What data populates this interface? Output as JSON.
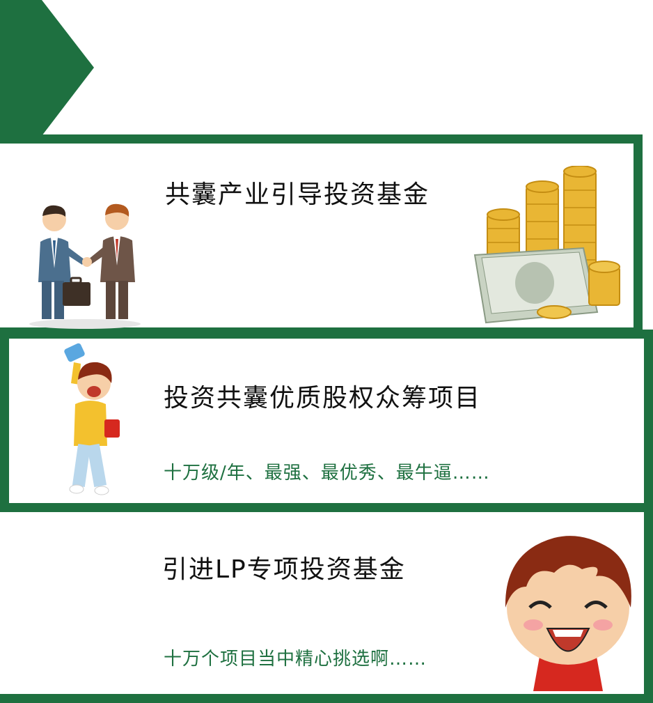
{
  "colors": {
    "accent": "#1e7040"
  },
  "sections": [
    {
      "title": "共囊产业引导投资基金",
      "subtitle": "",
      "icon": "handshake-businessmen-icon",
      "icon2": "money-coins-icon"
    },
    {
      "title": "投资共囊优质股权众筹项目",
      "subtitle": "十万级/年、最强、最优秀、最牛逼……",
      "icon": "cheering-boy-icon"
    },
    {
      "title": "引进LP专项投资基金",
      "subtitle": "十万个项目当中精心挑选啊……",
      "icon": "laughing-boy-icon"
    }
  ]
}
